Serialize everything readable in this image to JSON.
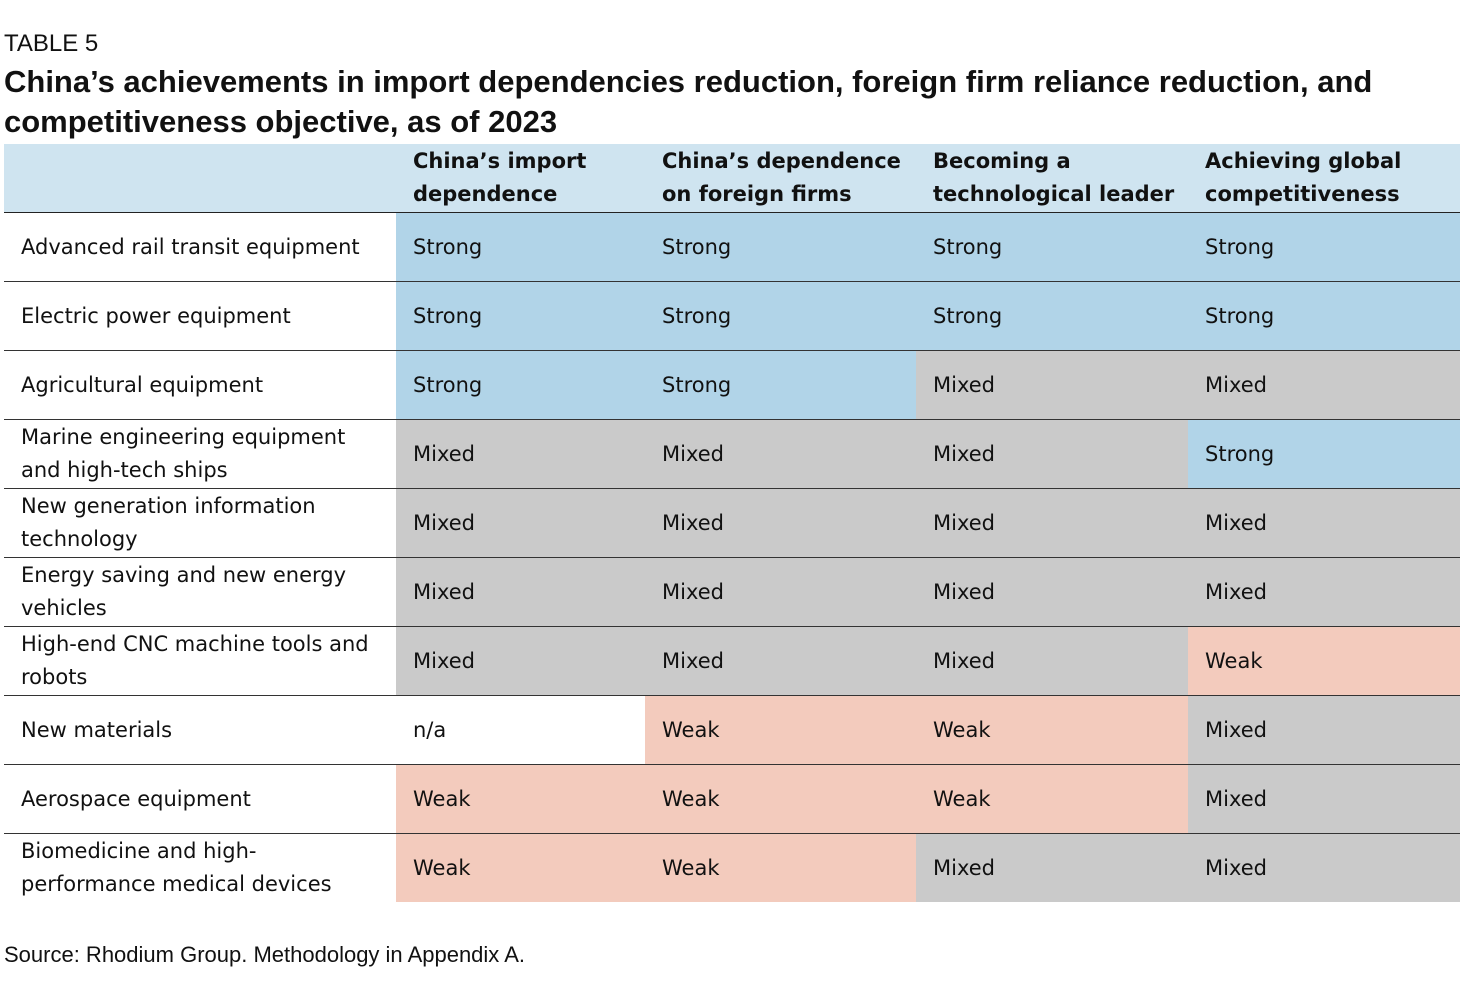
{
  "table_label": "TABLE 5",
  "title": "China’s achievements in import dependencies reduction, foreign firm reliance reduction, and competitiveness objective, as of 2023",
  "columns": [
    "",
    "China’s import dependence",
    "China’s dependence on foreign firms",
    "Becoming a technological leader",
    "Achieving global competitiveness"
  ],
  "colors": {
    "header": "#cfe4f0",
    "Strong": "#b1d4e8",
    "Mixed": "#cacaca",
    "Weak": "#f3cbbd",
    "n/a": "#ffffff"
  },
  "rows": [
    {
      "label": "Advanced rail transit equipment",
      "cells": [
        "Strong",
        "Strong",
        "Strong",
        "Strong"
      ]
    },
    {
      "label": "Electric power equipment",
      "cells": [
        "Strong",
        "Strong",
        "Strong",
        "Strong"
      ]
    },
    {
      "label": "Agricultural equipment",
      "cells": [
        "Strong",
        "Strong",
        "Mixed",
        "Mixed"
      ]
    },
    {
      "label": "Marine engineering equipment and high-tech ships",
      "cells": [
        "Mixed",
        "Mixed",
        "Mixed",
        "Strong"
      ]
    },
    {
      "label": "New generation information technology",
      "cells": [
        "Mixed",
        "Mixed",
        "Mixed",
        "Mixed"
      ]
    },
    {
      "label": "Energy saving and new energy vehicles",
      "cells": [
        "Mixed",
        "Mixed",
        "Mixed",
        "Mixed"
      ]
    },
    {
      "label": "High-end CNC machine tools and robots",
      "cells": [
        "Mixed",
        "Mixed",
        "Mixed",
        "Weak"
      ]
    },
    {
      "label": "New materials",
      "cells": [
        "n/a",
        "Weak",
        "Weak",
        "Mixed"
      ]
    },
    {
      "label": "Aerospace equipment",
      "cells": [
        "Weak",
        "Weak",
        "Weak",
        "Mixed"
      ]
    },
    {
      "label": "Biomedicine and high-performance medical devices",
      "cells": [
        "Weak",
        "Weak",
        "Mixed",
        "Mixed"
      ]
    }
  ],
  "source": "Source: Rhodium Group. Methodology in Appendix A."
}
